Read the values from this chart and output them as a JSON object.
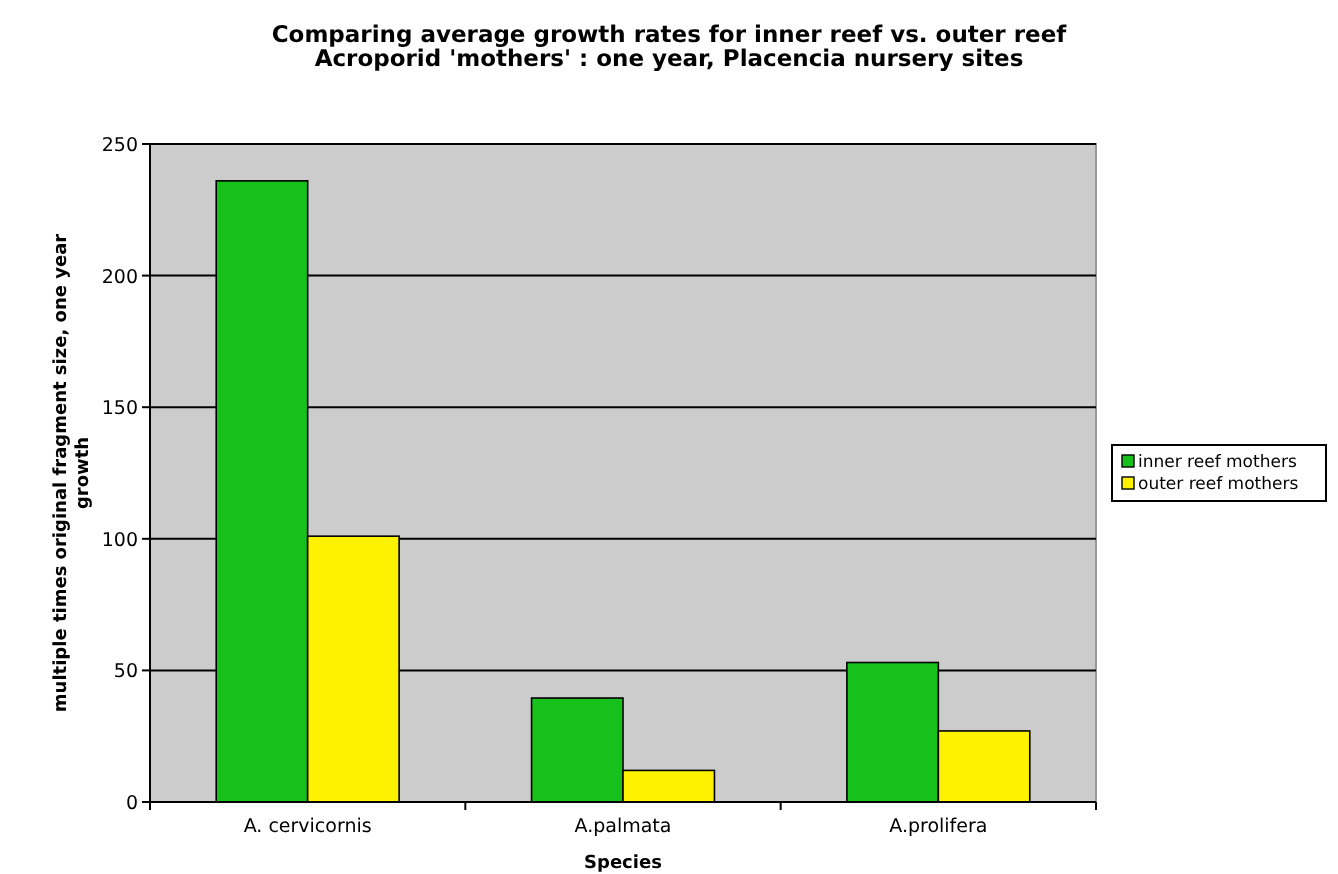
{
  "chart_data": {
    "type": "bar",
    "title": "Comparing average growth rates for inner reef vs. outer reef\nAcroporid 'mothers' : one year, Placencia nursery sites",
    "xlabel": "Species",
    "ylabel": "multiple times original fragment size, one year\ngrowth",
    "categories": [
      "A. cervicornis",
      "A.palmata",
      "A.prolifera"
    ],
    "series": [
      {
        "name": "inner reef mothers",
        "color": "#16c11b",
        "values": [
          236,
          39.5,
          53
        ]
      },
      {
        "name": "outer reef mothers",
        "color": "#fff200",
        "values": [
          101,
          12,
          27
        ]
      }
    ],
    "ylim": [
      0,
      250
    ],
    "yticks": [
      0,
      50,
      100,
      150,
      200,
      250
    ],
    "grid": "y",
    "legend": "right"
  }
}
